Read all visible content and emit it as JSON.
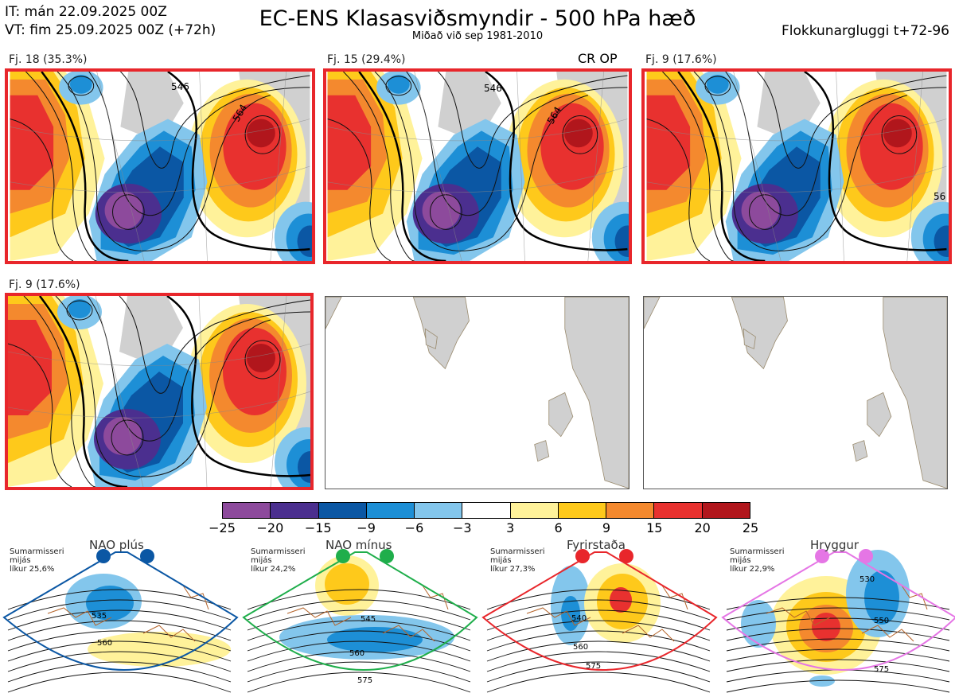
{
  "header": {
    "it_line": "IT: mán 22.09.2025 00Z",
    "vt_line": "VT: fim 25.09.2025 00Z  (+72h)",
    "title": "EC-ENS Klasasviðsmyndir - 500 hPa hæð",
    "subtitle": "Miðað við sep 1981-2010",
    "window": "Flokkunargluggi t+72-96"
  },
  "panels": [
    {
      "label": "Fj. 18 (35.3%)",
      "highlighted": true,
      "empty": false
    },
    {
      "label": "Fj. 15 (29.4%)",
      "highlighted": true,
      "empty": false,
      "extra": "CR OP"
    },
    {
      "label": "Fj. 9 (17.6%)",
      "highlighted": true,
      "empty": false
    },
    {
      "label": "Fj. 9 (17.6%)",
      "highlighted": true,
      "empty": false
    },
    {
      "label": "",
      "highlighted": false,
      "empty": true
    },
    {
      "label": "",
      "highlighted": false,
      "empty": true
    }
  ],
  "contour_labels": [
    "546",
    "564",
    "546",
    "564",
    "56"
  ],
  "colorbar": {
    "ticks": [
      "−25",
      "−20",
      "−15",
      "−9",
      "−6",
      "−3",
      "3",
      "6",
      "9",
      "15",
      "20",
      "25"
    ],
    "colors": [
      "#8d4a9c",
      "#4b2f8f",
      "#0b57a4",
      "#1d8fd6",
      "#83c6ec",
      "#ffffff",
      "#fff29a",
      "#fec91b",
      "#f4892e",
      "#e8312f",
      "#b1161c"
    ]
  },
  "regimes": [
    {
      "title": "NAO plús",
      "season": "Sumarmisseri",
      "median": "mijás",
      "prob": "líkur 25,6%",
      "color": "#0b57a4",
      "labels": [
        "535",
        "560"
      ]
    },
    {
      "title": "NAO mínus",
      "season": "Sumarmisseri",
      "median": "mijás",
      "prob": "líkur 24,2%",
      "color": "#1fae4b",
      "labels": [
        "545",
        "560",
        "575"
      ]
    },
    {
      "title": "Fyrirstaða",
      "season": "Sumarmisseri",
      "median": "mijás",
      "prob": "líkur 27,3%",
      "color": "#e8262b",
      "labels": [
        "540",
        "560",
        "575"
      ]
    },
    {
      "title": "Hryggur",
      "season": "Sumarmisseri",
      "median": "mijás",
      "prob": "líkur 22,9%",
      "color": "#e576e5",
      "labels": [
        "530",
        "550",
        "575"
      ]
    }
  ],
  "chart_data": {
    "type": "heatmap",
    "title": "EC-ENS Klasasviðsmyndir - 500 hPa hæð",
    "legend": "colorbar bottom-center",
    "colorbar_bounds": [
      -25,
      -20,
      -15,
      -9,
      -6,
      -3,
      3,
      6,
      9,
      15,
      20,
      25
    ],
    "clusters": [
      {
        "name": "Fj. 18",
        "percent": 35.3
      },
      {
        "name": "Fj. 15",
        "percent": 29.4
      },
      {
        "name": "Fj. 9",
        "percent": 17.6
      },
      {
        "name": "Fj. 9",
        "percent": 17.6
      }
    ],
    "regimes": [
      {
        "name": "NAO plús",
        "probability": 25.6
      },
      {
        "name": "NAO mínus",
        "probability": 24.2
      },
      {
        "name": "Fyrirstaða",
        "probability": 27.3
      },
      {
        "name": "Hryggur",
        "probability": 22.9
      }
    ]
  }
}
